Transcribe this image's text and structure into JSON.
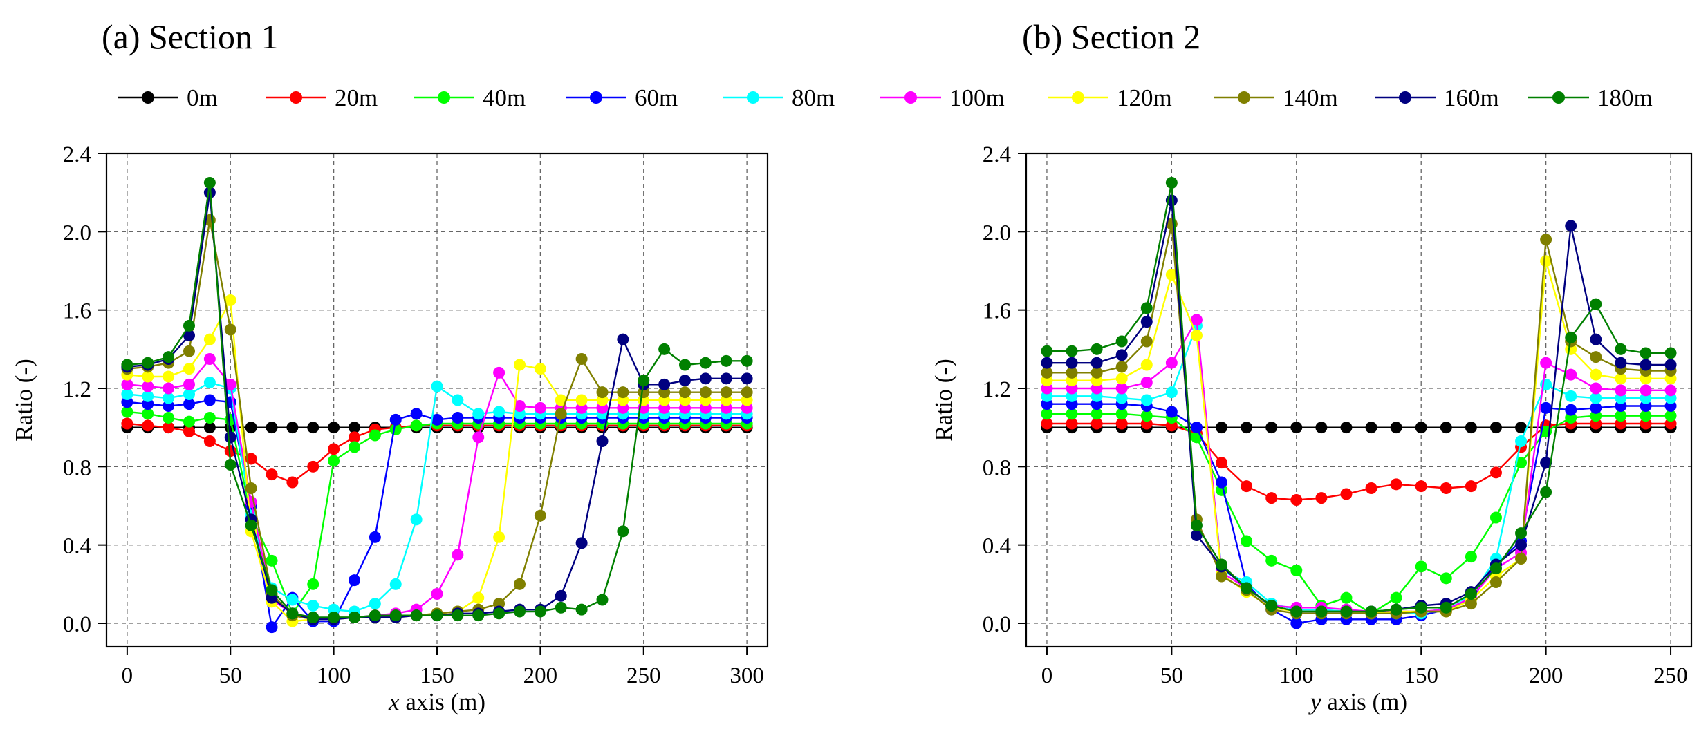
{
  "legend": [
    {
      "name": "0m",
      "color": "#000000"
    },
    {
      "name": "20m",
      "color": "#ff0000"
    },
    {
      "name": "40m",
      "color": "#00ff00"
    },
    {
      "name": "60m",
      "color": "#0000ff"
    },
    {
      "name": "80m",
      "color": "#00ffff"
    },
    {
      "name": "100m",
      "color": "#ff00ff"
    },
    {
      "name": "120m",
      "color": "#ffff00"
    },
    {
      "name": "140m",
      "color": "#808000"
    },
    {
      "name": "160m",
      "color": "#000080"
    },
    {
      "name": "180m",
      "color": "#008000"
    }
  ],
  "chart_data": [
    {
      "type": "line",
      "title": "(a) Section 1",
      "xlabel_var": "x",
      "xlabel_rest": " axis (m)",
      "ylabel": "Ratio (-)",
      "xlim": [
        -10,
        310
      ],
      "ylim": [
        -0.12,
        2.4
      ],
      "xticks": [
        0,
        50,
        100,
        150,
        200,
        250,
        300
      ],
      "yticks": [
        0.0,
        0.4,
        0.8,
        1.2,
        1.6,
        2.0,
        2.4
      ],
      "x": [
        0,
        10,
        20,
        30,
        40,
        50,
        60,
        70,
        80,
        90,
        100,
        110,
        120,
        130,
        140,
        150,
        160,
        170,
        180,
        190,
        200,
        210,
        220,
        230,
        240,
        250,
        260,
        270,
        280,
        290,
        300
      ],
      "series": [
        {
          "name": "0m",
          "values": [
            1.0,
            1.0,
            1.0,
            1.0,
            1.0,
            1.0,
            1.0,
            1.0,
            1.0,
            1.0,
            1.0,
            1.0,
            1.0,
            1.0,
            1.0,
            1.0,
            1.0,
            1.0,
            1.0,
            1.0,
            1.0,
            1.0,
            1.0,
            1.0,
            1.0,
            1.0,
            1.0,
            1.0,
            1.0,
            1.0,
            1.0
          ]
        },
        {
          "name": "20m",
          "values": [
            1.02,
            1.01,
            1.0,
            0.98,
            0.93,
            0.88,
            0.84,
            0.76,
            0.72,
            0.8,
            0.89,
            0.95,
            0.99,
            1.0,
            1.01,
            1.01,
            1.01,
            1.01,
            1.01,
            1.01,
            1.01,
            1.01,
            1.01,
            1.01,
            1.01,
            1.01,
            1.01,
            1.01,
            1.01,
            1.01,
            1.01
          ]
        },
        {
          "name": "40m",
          "values": [
            1.08,
            1.07,
            1.05,
            1.03,
            1.05,
            1.04,
            0.55,
            0.32,
            0.05,
            0.2,
            0.83,
            0.9,
            0.96,
            0.99,
            1.01,
            1.02,
            1.02,
            1.02,
            1.02,
            1.02,
            1.02,
            1.02,
            1.02,
            1.02,
            1.02,
            1.02,
            1.02,
            1.02,
            1.02,
            1.02,
            1.02
          ]
        },
        {
          "name": "60m",
          "values": [
            1.13,
            1.12,
            1.11,
            1.12,
            1.14,
            1.13,
            0.6,
            -0.02,
            0.13,
            0.01,
            0.01,
            0.22,
            0.44,
            1.04,
            1.07,
            1.04,
            1.05,
            1.05,
            1.05,
            1.05,
            1.05,
            1.05,
            1.05,
            1.05,
            1.05,
            1.05,
            1.05,
            1.05,
            1.05,
            1.05,
            1.05
          ]
        },
        {
          "name": "80m",
          "values": [
            1.17,
            1.16,
            1.15,
            1.17,
            1.23,
            1.2,
            0.55,
            0.18,
            0.12,
            0.09,
            0.07,
            0.06,
            0.1,
            0.2,
            0.53,
            1.21,
            1.14,
            1.07,
            1.08,
            1.07,
            1.07,
            1.07,
            1.07,
            1.07,
            1.07,
            1.07,
            1.07,
            1.07,
            1.07,
            1.07,
            1.07
          ]
        },
        {
          "name": "100m",
          "values": [
            1.22,
            1.21,
            1.2,
            1.22,
            1.35,
            1.22,
            0.62,
            0.12,
            0.05,
            0.03,
            0.02,
            0.03,
            0.04,
            0.05,
            0.07,
            0.15,
            0.35,
            0.95,
            1.28,
            1.11,
            1.1,
            1.1,
            1.1,
            1.1,
            1.1,
            1.1,
            1.1,
            1.1,
            1.1,
            1.1,
            1.1
          ]
        },
        {
          "name": "120m",
          "values": [
            1.27,
            1.26,
            1.26,
            1.3,
            1.45,
            1.65,
            0.47,
            0.11,
            0.01,
            0.02,
            0.02,
            0.03,
            0.03,
            0.03,
            0.04,
            0.05,
            0.06,
            0.13,
            0.44,
            1.32,
            1.3,
            1.14,
            1.14,
            1.14,
            1.14,
            1.14,
            1.14,
            1.14,
            1.14,
            1.14,
            1.14
          ]
        },
        {
          "name": "140m",
          "values": [
            1.3,
            1.31,
            1.33,
            1.39,
            2.06,
            1.5,
            0.69,
            0.15,
            0.04,
            0.02,
            0.03,
            0.03,
            0.03,
            0.04,
            0.04,
            0.05,
            0.06,
            0.07,
            0.1,
            0.2,
            0.55,
            1.07,
            1.35,
            1.18,
            1.18,
            1.18,
            1.18,
            1.18,
            1.18,
            1.18,
            1.18
          ]
        },
        {
          "name": "160m",
          "values": [
            1.31,
            1.32,
            1.35,
            1.47,
            2.2,
            0.95,
            0.53,
            0.13,
            0.05,
            0.02,
            0.02,
            0.03,
            0.03,
            0.03,
            0.04,
            0.04,
            0.05,
            0.05,
            0.06,
            0.07,
            0.07,
            0.14,
            0.41,
            0.93,
            1.45,
            1.22,
            1.22,
            1.24,
            1.25,
            1.25,
            1.25
          ]
        },
        {
          "name": "180m",
          "values": [
            1.32,
            1.33,
            1.36,
            1.52,
            2.25,
            0.81,
            0.5,
            0.17,
            0.05,
            0.03,
            0.03,
            0.03,
            0.04,
            0.04,
            0.04,
            0.04,
            0.04,
            0.04,
            0.05,
            0.06,
            0.06,
            0.08,
            0.07,
            0.12,
            0.47,
            1.24,
            1.4,
            1.32,
            1.33,
            1.34,
            1.34
          ]
        }
      ]
    },
    {
      "type": "line",
      "title": "(b) Section 2",
      "xlabel_var": "y",
      "xlabel_rest": " axis (m)",
      "ylabel": "Ratio (-)",
      "xlim": [
        -8.3,
        258.3
      ],
      "ylim": [
        -0.12,
        2.4
      ],
      "xticks": [
        0,
        50,
        100,
        150,
        200,
        250
      ],
      "yticks": [
        0.0,
        0.4,
        0.8,
        1.2,
        1.6,
        2.0,
        2.4
      ],
      "x": [
        0,
        10,
        20,
        30,
        40,
        50,
        60,
        70,
        80,
        90,
        100,
        110,
        120,
        130,
        140,
        150,
        160,
        170,
        180,
        190,
        200,
        210,
        220,
        230,
        240,
        250
      ],
      "series": [
        {
          "name": "0m",
          "values": [
            1.0,
            1.0,
            1.0,
            1.0,
            1.0,
            1.0,
            1.0,
            1.0,
            1.0,
            1.0,
            1.0,
            1.0,
            1.0,
            1.0,
            1.0,
            1.0,
            1.0,
            1.0,
            1.0,
            1.0,
            1.0,
            1.0,
            1.0,
            1.0,
            1.0,
            1.0
          ]
        },
        {
          "name": "20m",
          "values": [
            1.02,
            1.02,
            1.02,
            1.02,
            1.02,
            1.01,
            0.97,
            0.82,
            0.7,
            0.64,
            0.63,
            0.64,
            0.66,
            0.69,
            0.71,
            0.7,
            0.69,
            0.7,
            0.77,
            0.9,
            1.01,
            1.02,
            1.02,
            1.02,
            1.02,
            1.02
          ]
        },
        {
          "name": "40m",
          "values": [
            1.07,
            1.07,
            1.07,
            1.07,
            1.06,
            1.05,
            0.95,
            0.68,
            0.42,
            0.32,
            0.27,
            0.09,
            0.13,
            0.05,
            0.13,
            0.29,
            0.23,
            0.34,
            0.54,
            0.82,
            0.98,
            1.05,
            1.06,
            1.06,
            1.06,
            1.06
          ]
        },
        {
          "name": "60m",
          "values": [
            1.12,
            1.12,
            1.12,
            1.12,
            1.11,
            1.08,
            1.0,
            0.72,
            0.2,
            0.07,
            0.0,
            0.02,
            0.02,
            0.02,
            0.02,
            0.04,
            0.07,
            0.12,
            0.3,
            0.42,
            1.1,
            1.09,
            1.1,
            1.11,
            1.11,
            1.11
          ]
        },
        {
          "name": "80m",
          "values": [
            1.16,
            1.16,
            1.16,
            1.15,
            1.14,
            1.18,
            1.52,
            0.27,
            0.21,
            0.1,
            0.07,
            0.07,
            0.06,
            0.06,
            0.05,
            0.05,
            0.08,
            0.14,
            0.33,
            0.93,
            1.22,
            1.16,
            1.15,
            1.15,
            1.15,
            1.15
          ]
        },
        {
          "name": "100m",
          "values": [
            1.2,
            1.2,
            1.2,
            1.2,
            1.23,
            1.33,
            1.55,
            0.26,
            0.18,
            0.09,
            0.08,
            0.08,
            0.07,
            0.06,
            0.06,
            0.06,
            0.07,
            0.13,
            0.28,
            0.36,
            1.33,
            1.27,
            1.2,
            1.19,
            1.19,
            1.19
          ]
        },
        {
          "name": "120m",
          "values": [
            1.24,
            1.24,
            1.24,
            1.25,
            1.32,
            1.78,
            1.47,
            0.25,
            0.16,
            0.08,
            0.06,
            0.06,
            0.06,
            0.05,
            0.06,
            0.06,
            0.06,
            0.12,
            0.24,
            0.33,
            1.85,
            1.4,
            1.27,
            1.25,
            1.25,
            1.25
          ]
        },
        {
          "name": "140m",
          "values": [
            1.28,
            1.28,
            1.28,
            1.31,
            1.44,
            2.04,
            0.53,
            0.24,
            0.17,
            0.07,
            0.05,
            0.05,
            0.05,
            0.05,
            0.05,
            0.06,
            0.06,
            0.1,
            0.21,
            0.33,
            1.96,
            1.44,
            1.36,
            1.3,
            1.29,
            1.29
          ]
        },
        {
          "name": "160m",
          "values": [
            1.33,
            1.33,
            1.33,
            1.37,
            1.54,
            2.16,
            0.45,
            0.29,
            0.18,
            0.09,
            0.06,
            0.06,
            0.06,
            0.06,
            0.07,
            0.09,
            0.1,
            0.16,
            0.3,
            0.4,
            0.82,
            2.03,
            1.45,
            1.33,
            1.32,
            1.32
          ]
        },
        {
          "name": "180m",
          "values": [
            1.39,
            1.39,
            1.4,
            1.44,
            1.61,
            2.25,
            0.5,
            0.3,
            0.18,
            0.09,
            0.06,
            0.06,
            0.06,
            0.06,
            0.07,
            0.08,
            0.08,
            0.15,
            0.28,
            0.46,
            0.67,
            1.46,
            1.63,
            1.4,
            1.38,
            1.38
          ]
        }
      ]
    }
  ]
}
